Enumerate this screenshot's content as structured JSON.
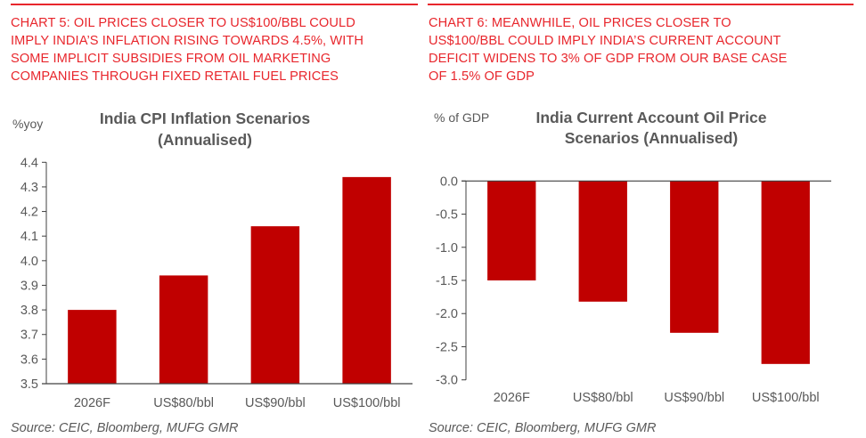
{
  "chart_data": [
    {
      "type": "bar",
      "heading_lines": [
        "CHART 5: OIL PRICES CLOSER TO US$100/BBL COULD",
        "IMPLY INDIA’S INFLATION RISING TOWARDS 4.5%, WITH",
        "SOME IMPLICIT SUBSIDIES FROM OIL MARKETING",
        "COMPANIES THROUGH FIXED RETAIL FUEL PRICES"
      ],
      "title_lines": [
        "India CPI Inflation Scenarios",
        "(Annualised)"
      ],
      "ylabel": "%yoy",
      "xlabel": "",
      "categories": [
        "2026F",
        "US$80/bbl",
        "US$90/bbl",
        "US$100/bbl"
      ],
      "values": [
        3.8,
        3.94,
        4.14,
        4.34
      ],
      "ylim": [
        3.5,
        4.4
      ],
      "yticks": [
        "3.5",
        "3.6",
        "3.7",
        "3.8",
        "3.9",
        "4.0",
        "4.1",
        "4.2",
        "4.3",
        "4.4"
      ],
      "grid": false,
      "bar_color": "#c00000",
      "source": "Source: CEIC, Bloomberg, MUFG GMR"
    },
    {
      "type": "bar",
      "heading_lines": [
        "CHART 6: MEANWHILE, OIL PRICES CLOSER TO",
        "US$100/BBL COULD IMPLY INDIA’S CURRENT ACCOUNT",
        "DEFICIT WIDENS TO 3% OF GDP FROM OUR BASE CASE",
        "OF 1.5% OF GDP"
      ],
      "title_lines": [
        "India Current Account Oil Price",
        "Scenarios (Annualised)"
      ],
      "ylabel": "% of GDP",
      "xlabel": "",
      "categories": [
        "2026F",
        "US$80/bbl",
        "US$90/bbl",
        "US$100/bbl"
      ],
      "values": [
        -1.5,
        -1.82,
        -2.29,
        -2.76
      ],
      "ylim": [
        -3.0,
        0.0
      ],
      "yticks": [
        "-3.0",
        "-2.5",
        "-2.0",
        "-1.5",
        "-1.0",
        "-0.5",
        "0.0"
      ],
      "grid": false,
      "bar_color": "#c00000",
      "source": "Source: CEIC, Bloomberg, MUFG GMR"
    }
  ]
}
